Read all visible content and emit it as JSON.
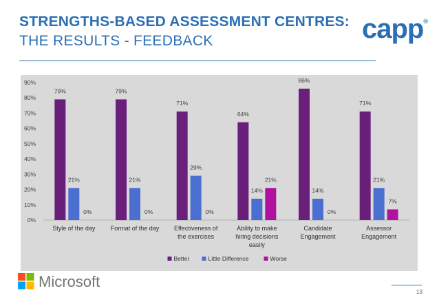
{
  "header": {
    "title_line1": "STRENGTHS-BASED ASSESSMENT CENTRES:",
    "title_line2": "THE RESULTS - FEEDBACK"
  },
  "logo": {
    "text": "capp",
    "reg": "®"
  },
  "footer": {
    "company": "Microsoft",
    "page_number": "13"
  },
  "colors": {
    "title": "#2a6fb6",
    "plot_bg": "#d9d9d9",
    "better": "#6a1f7a",
    "little_difference": "#4a6fd0",
    "worse": "#b0119e"
  },
  "chart_data": {
    "type": "bar",
    "categories": [
      [
        "Style of the day"
      ],
      [
        "Format of the day"
      ],
      [
        "Effectiveness of",
        "the exercises"
      ],
      [
        "Ability to make",
        "hiring decisions",
        "easily"
      ],
      [
        "Candidate",
        "Engagement"
      ],
      [
        "Assessor",
        "Engagement"
      ]
    ],
    "series": [
      {
        "name": "Better",
        "values": [
          79,
          79,
          71,
          64,
          86,
          71
        ],
        "color": "#6a1f7a"
      },
      {
        "name": "Little Difference",
        "values": [
          21,
          21,
          29,
          14,
          14,
          21
        ],
        "color": "#4a6fd0"
      },
      {
        "name": "Worse",
        "values": [
          0,
          0,
          0,
          21,
          0,
          7
        ],
        "color": "#b0119e"
      }
    ],
    "data_label_suffix": "%",
    "ylim": [
      0,
      90
    ],
    "yticks": [
      "0%",
      "10%",
      "20%",
      "30%",
      "40%",
      "50%",
      "60%",
      "70%",
      "80%",
      "90%"
    ],
    "legend_position": "bottom",
    "grid": false
  }
}
